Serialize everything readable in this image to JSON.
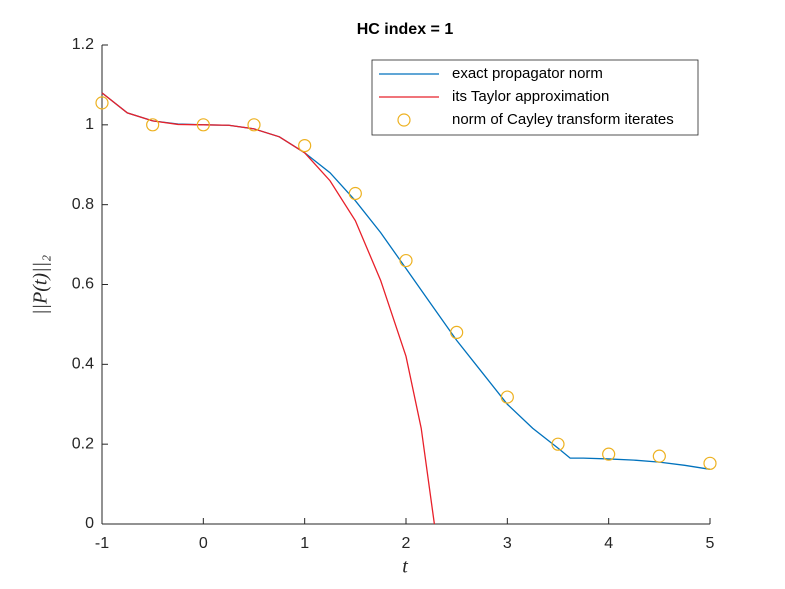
{
  "chart_data": {
    "type": "line",
    "title": "HC index = 1",
    "x_label": "t",
    "y_label": "||P(t)||₂",
    "xlim": [
      -1,
      5
    ],
    "ylim": [
      0,
      1.2
    ],
    "xticks": [
      -1,
      0,
      1,
      2,
      3,
      4,
      5
    ],
    "yticks": [
      0,
      0.2,
      0.4,
      0.6,
      0.8,
      1,
      1.2
    ],
    "legend": "upper right",
    "series": [
      {
        "name": "exact propagator norm",
        "color": "#0072bd",
        "style": "line",
        "x": [
          -1,
          -0.75,
          -0.5,
          -0.25,
          0,
          0.25,
          0.5,
          0.75,
          1,
          1.25,
          1.5,
          1.75,
          2,
          2.25,
          2.5,
          2.75,
          3,
          3.25,
          3.5,
          3.62,
          3.75,
          4,
          4.25,
          4.5,
          4.75,
          5
        ],
        "values": [
          1.08,
          1.03,
          1.01,
          1.002,
          1,
          0.999,
          0.99,
          0.97,
          0.93,
          0.88,
          0.81,
          0.73,
          0.64,
          0.55,
          0.46,
          0.38,
          0.3,
          0.24,
          0.19,
          0.165,
          0.165,
          0.163,
          0.16,
          0.155,
          0.147,
          0.137
        ]
      },
      {
        "name": "its Taylor approximation",
        "color": "#e8202a",
        "style": "line",
        "x": [
          -1,
          -0.75,
          -0.5,
          -0.25,
          0,
          0.25,
          0.5,
          0.75,
          1,
          1.25,
          1.5,
          1.75,
          2,
          2.15,
          2.28
        ],
        "values": [
          1.08,
          1.03,
          1.01,
          1.001,
          1,
          0.999,
          0.99,
          0.97,
          0.93,
          0.86,
          0.76,
          0.61,
          0.42,
          0.24,
          0
        ]
      },
      {
        "name": "norm of Cayley transform iterates",
        "color": "#edb120",
        "style": "markers",
        "x": [
          -1,
          -0.5,
          0,
          0.5,
          1,
          1.5,
          2,
          2.5,
          3,
          3.5,
          4,
          4.5,
          5
        ],
        "values": [
          1.055,
          1,
          1,
          1,
          0.948,
          0.828,
          0.66,
          0.48,
          0.318,
          0.2,
          0.175,
          0.17,
          0.152
        ]
      }
    ]
  }
}
